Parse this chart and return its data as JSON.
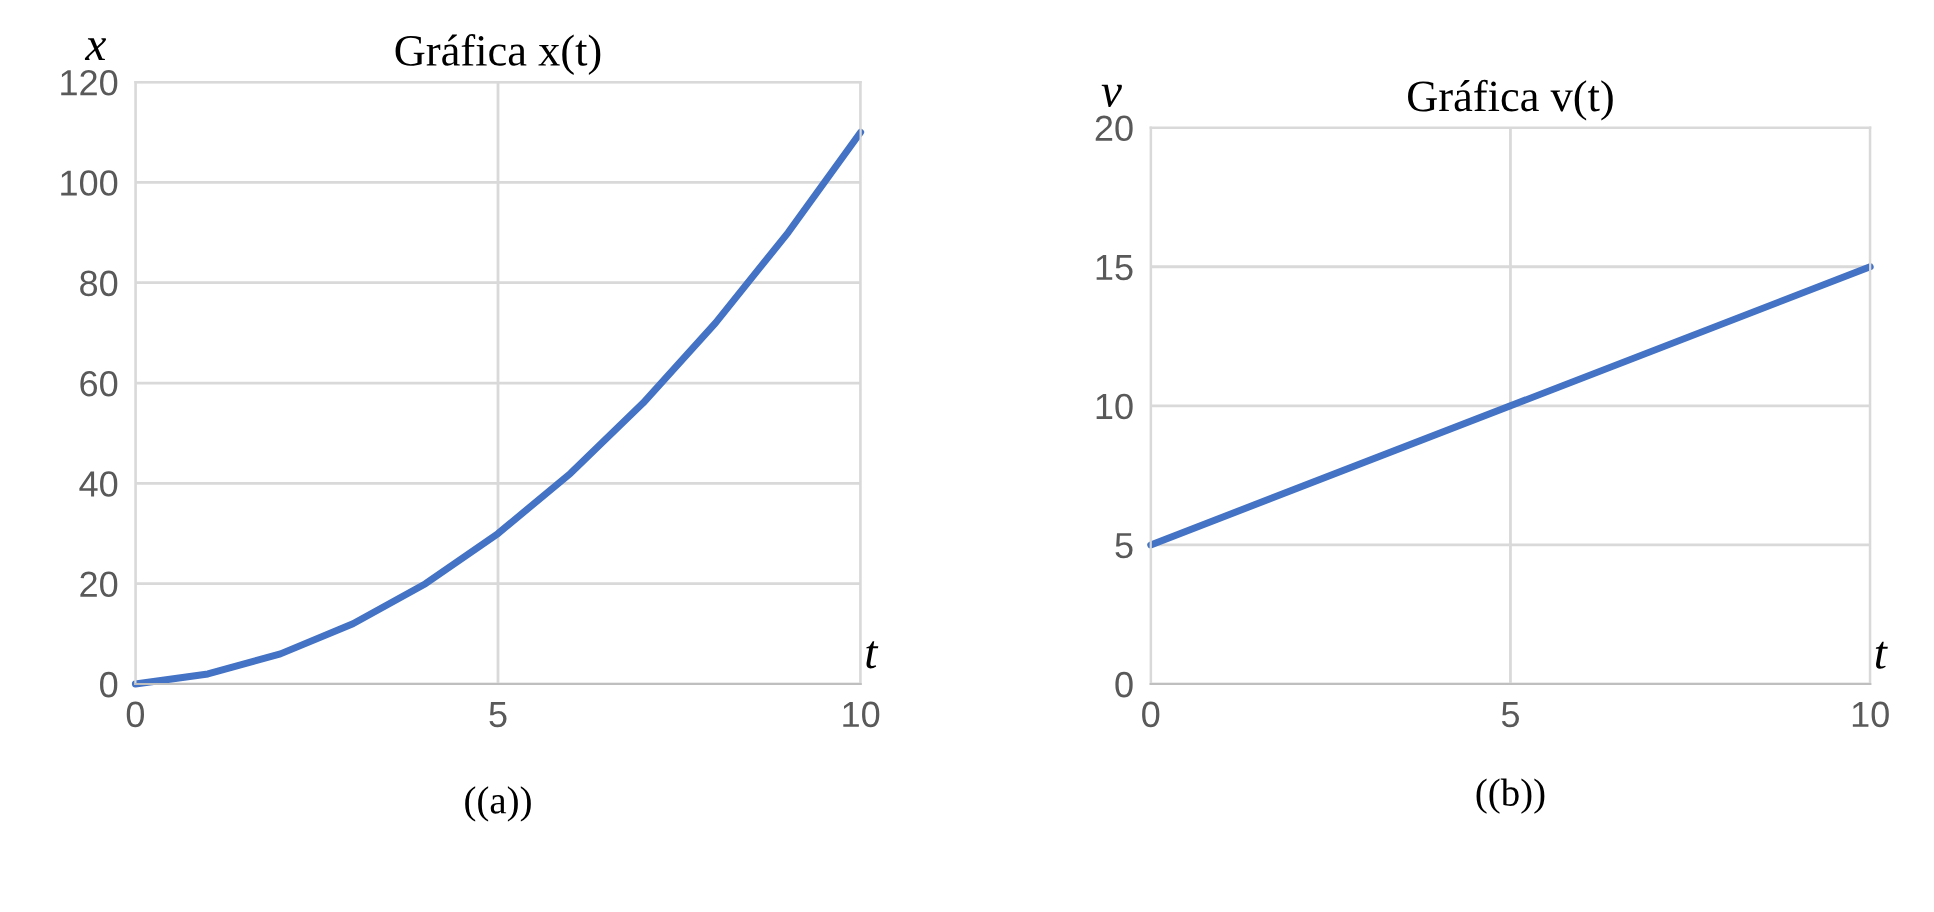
{
  "chart_data": [
    {
      "type": "line",
      "title": "Gráfica x(t)",
      "ylabel": "x",
      "xlabel": "t",
      "annotations": [
        "((a))"
      ],
      "x": [
        0,
        1,
        2,
        3,
        4,
        5,
        6,
        7,
        8,
        9,
        10
      ],
      "series": [
        {
          "color": "#4472c4",
          "values": [
            0,
            2,
            6,
            12,
            20,
            30,
            42,
            56,
            72,
            90,
            110
          ]
        }
      ],
      "xlim": [
        0,
        10
      ],
      "xticks": [
        0,
        5,
        10
      ],
      "ylim": [
        0,
        120
      ],
      "yticks": [
        0,
        20,
        40,
        60,
        80,
        100,
        120
      ],
      "grid": true,
      "marker": "none",
      "line_style": "solid"
    },
    {
      "type": "line",
      "title": "Gráfica v(t)",
      "ylabel": "v",
      "xlabel": "t",
      "annotations": [
        "((b))"
      ],
      "x": [
        0,
        10
      ],
      "series": [
        {
          "color": "#4472c4",
          "values": [
            5,
            15
          ]
        }
      ],
      "xlim": [
        0,
        10
      ],
      "xticks": [
        0,
        5,
        10
      ],
      "ylim": [
        0,
        20
      ],
      "yticks": [
        0,
        5,
        10,
        15,
        20
      ],
      "grid": true,
      "marker": "none",
      "line_style": "solid"
    }
  ]
}
